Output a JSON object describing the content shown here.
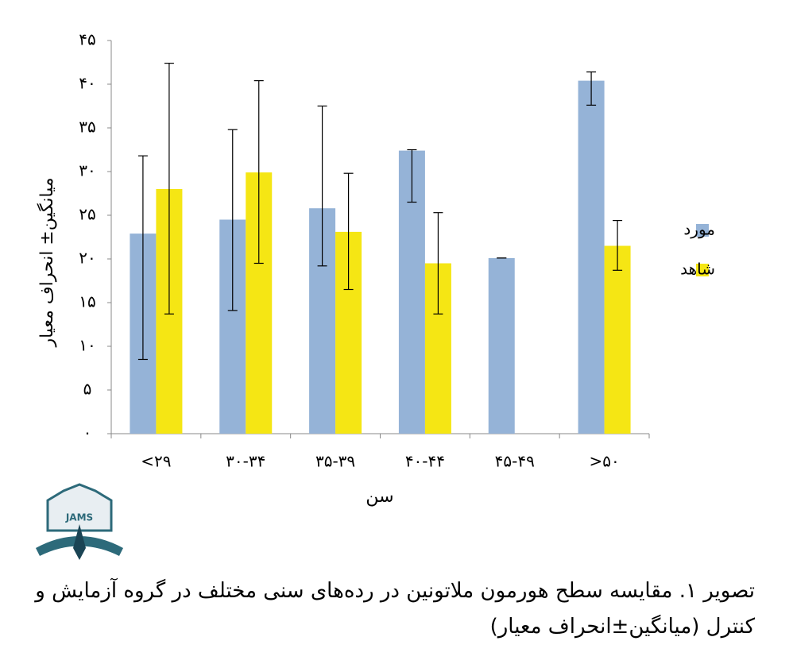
{
  "chart_data": {
    "type": "bar",
    "categories": [
      "<۲۹",
      "۳۰-۳۴",
      "۳۵-۳۹",
      "۴۰-۴۴",
      "۴۵-۴۹",
      ">۵۰"
    ],
    "series": [
      {
        "name": "مورد",
        "color": "#95b3d7",
        "values": [
          22.9,
          24.5,
          25.8,
          32.4,
          20.1,
          40.4
        ],
        "errors_plus": [
          8.9,
          10.3,
          11.7,
          0.1,
          0,
          1.0
        ],
        "errors_minus": [
          14.4,
          10.4,
          6.6,
          5.9,
          0,
          2.8
        ]
      },
      {
        "name": "شاهد",
        "color": "#f5e614",
        "values": [
          28.0,
          29.9,
          23.1,
          19.5,
          null,
          21.5
        ],
        "errors_plus": [
          14.4,
          10.5,
          6.7,
          5.8,
          null,
          2.9
        ],
        "errors_minus": [
          14.3,
          10.4,
          6.6,
          5.8,
          null,
          2.8
        ]
      }
    ],
    "ylim": [
      0,
      45
    ],
    "yticks": [
      {
        "value": 0,
        "label": "۰"
      },
      {
        "value": 5,
        "label": "۵"
      },
      {
        "value": 10,
        "label": "۱۰"
      },
      {
        "value": 15,
        "label": "۱۵"
      },
      {
        "value": 20,
        "label": "۲۰"
      },
      {
        "value": 25,
        "label": "۲۵"
      },
      {
        "value": 30,
        "label": "۳۰"
      },
      {
        "value": 35,
        "label": "۳۵"
      },
      {
        "value": 40,
        "label": "۴۰"
      },
      {
        "value": 45,
        "label": "۴۵"
      }
    ],
    "x_label": "سن",
    "y_label": "میانگین± انحراف معیار",
    "legend": "right",
    "grid": false
  },
  "logo_text": "JAMS",
  "caption": "تصویر ۱. مقایسه سطح هورمون ملاتونین در رده‌های سنی مختلف در گروه آزمایش و کنترل (میانگین±انحراف معیار)"
}
